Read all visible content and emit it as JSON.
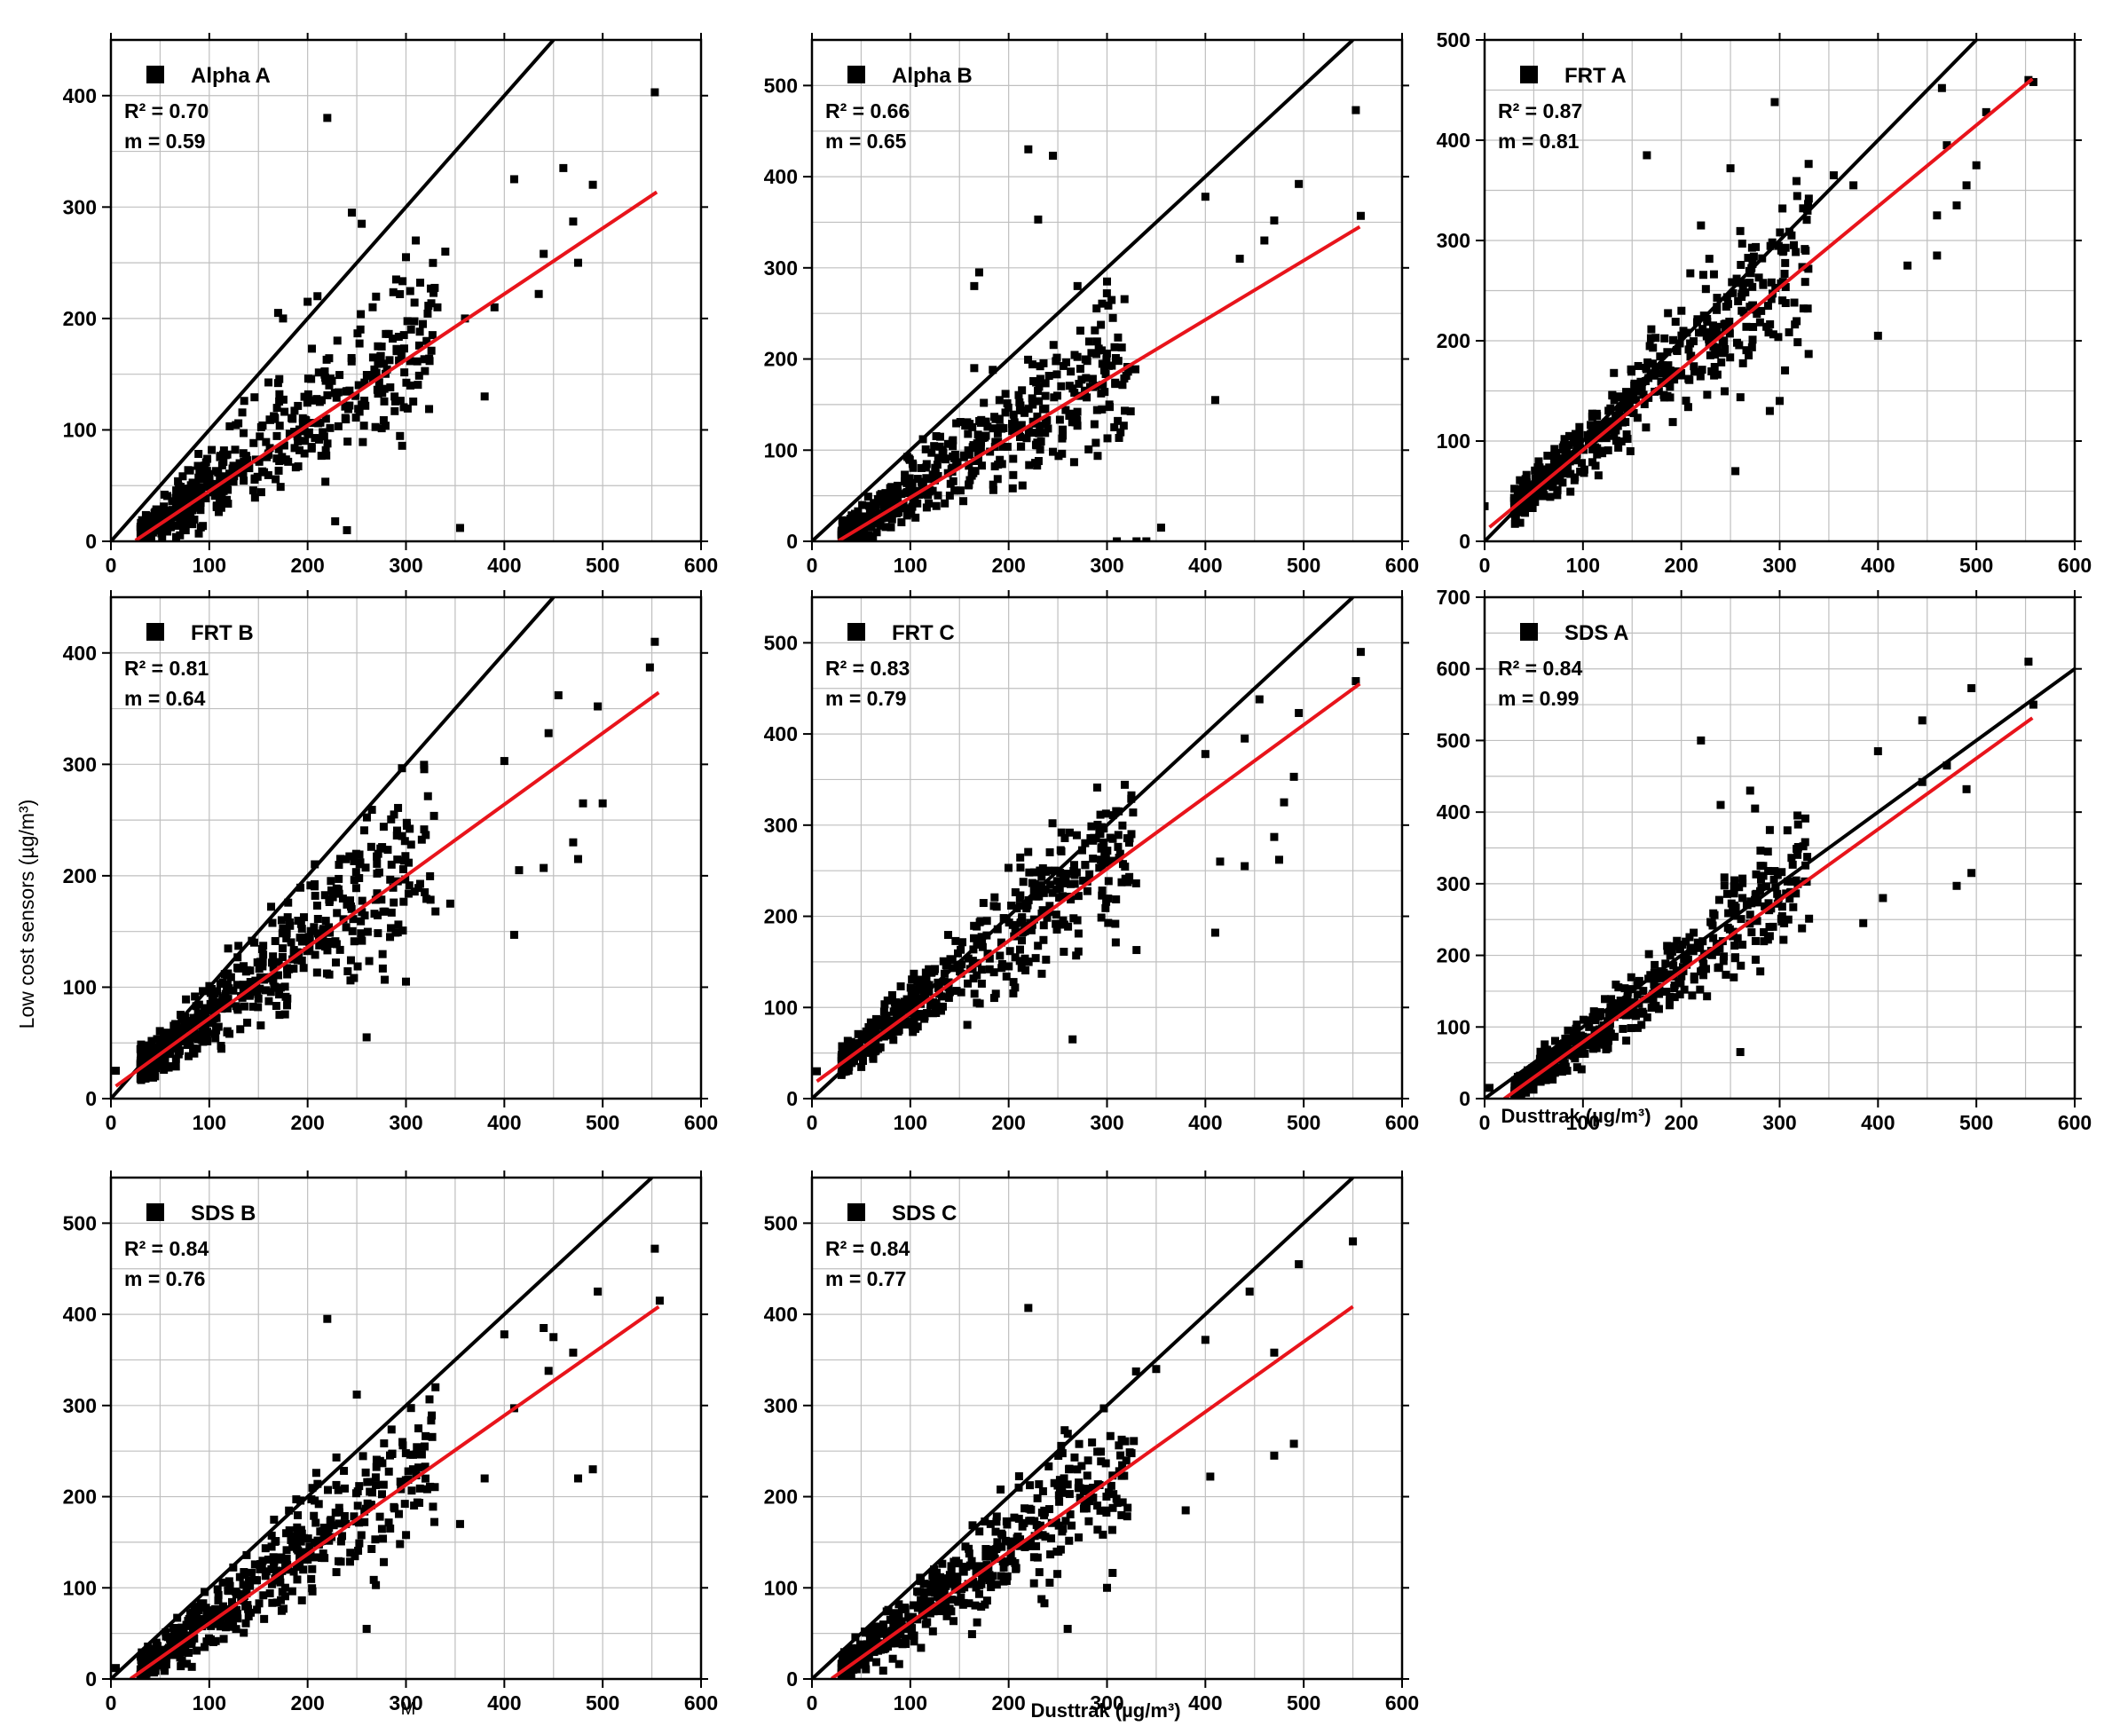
{
  "figure": {
    "y_axis_label": "Low cost sensors (µg/m³)",
    "stray_label": "M",
    "x_axis_label_middle_right": "Dusttrak (µg/m³)",
    "x_axis_label_bottom": "Dusttrak (µg/m³)"
  },
  "colors": {
    "points": "#000000",
    "one_to_one_line": "#000000",
    "fit_line": "#e8141b",
    "grid": "#bfbfbf"
  },
  "chart_data": [
    {
      "type": "scatter",
      "legend": "Alpha A",
      "r2": "R² = 0.70",
      "slope": "m = 0.59",
      "xlim": [
        0,
        600
      ],
      "ylim": [
        0,
        450
      ],
      "xticks": [
        0,
        100,
        200,
        300,
        400,
        500,
        600
      ],
      "yticks": [
        0,
        100,
        200,
        300,
        400
      ],
      "fit": {
        "m": 0.59,
        "b": -14,
        "x0": 25,
        "x1": 555
      },
      "series": [
        {
          "points": [
            [
              220,
              380
            ],
            [
              553,
              403
            ],
            [
              410,
              325
            ],
            [
              460,
              335
            ],
            [
              490,
              320
            ],
            [
              470,
              287
            ],
            [
              440,
              258
            ],
            [
              475,
              250
            ],
            [
              390,
              210
            ],
            [
              435,
              222
            ],
            [
              380,
              130
            ],
            [
              355,
              12
            ],
            [
              240,
              10
            ],
            [
              228,
              18
            ],
            [
              300,
              255
            ],
            [
              310,
              270
            ],
            [
              245,
              295
            ],
            [
              255,
              285
            ],
            [
              290,
              235
            ],
            [
              340,
              260
            ],
            [
              332,
              210
            ],
            [
              360,
              200
            ],
            [
              175,
              200
            ],
            [
              170,
              205
            ],
            [
              200,
              215
            ],
            [
              210,
              220
            ]
          ]
        }
      ]
    },
    {
      "type": "scatter",
      "legend": "Alpha B",
      "r2": "R² = 0.66",
      "slope": "m = 0.65",
      "xlim": [
        0,
        600
      ],
      "ylim": [
        0,
        550
      ],
      "xticks": [
        0,
        100,
        200,
        300,
        400,
        500,
        600
      ],
      "yticks": [
        0,
        100,
        200,
        300,
        400,
        500
      ],
      "fit": {
        "m": 0.65,
        "b": -17,
        "x0": 27,
        "x1": 557
      },
      "series": [
        {
          "points": [
            [
              553,
              473
            ],
            [
              558,
              357
            ],
            [
              220,
              430
            ],
            [
              245,
              423
            ],
            [
              230,
              353
            ],
            [
              400,
              378
            ],
            [
              495,
              392
            ],
            [
              470,
              352
            ],
            [
              460,
              330
            ],
            [
              435,
              310
            ],
            [
              410,
              155
            ],
            [
              355,
              15
            ],
            [
              310,
              0
            ],
            [
              330,
              0
            ],
            [
              340,
              0
            ],
            [
              170,
              295
            ],
            [
              165,
              280
            ],
            [
              300,
              285
            ],
            [
              270,
              280
            ],
            [
              165,
              190
            ],
            [
              160,
              95
            ]
          ]
        }
      ]
    },
    {
      "type": "scatter",
      "legend": "FRT A",
      "r2": "R² = 0.87",
      "slope": "m = 0.81",
      "xlim": [
        0,
        600
      ],
      "ylim": [
        0,
        500
      ],
      "xticks": [
        0,
        100,
        200,
        300,
        400,
        500,
        600
      ],
      "yticks": [
        0,
        100,
        200,
        300,
        400,
        500
      ],
      "fit": {
        "m": 0.81,
        "b": 10,
        "x0": 5,
        "x1": 557
      },
      "series": [
        {
          "points": [
            [
              553,
              460
            ],
            [
              558,
              458
            ],
            [
              465,
              452
            ],
            [
              510,
              428
            ],
            [
              295,
              438
            ],
            [
              165,
              385
            ],
            [
              250,
              372
            ],
            [
              500,
              375
            ],
            [
              470,
              395
            ],
            [
              480,
              335
            ],
            [
              490,
              355
            ],
            [
              460,
              325
            ],
            [
              430,
              275
            ],
            [
              460,
              285
            ],
            [
              400,
              205
            ],
            [
              300,
              140
            ],
            [
              290,
              130
            ],
            [
              255,
              70
            ],
            [
              220,
              315
            ],
            [
              375,
              355
            ],
            [
              355,
              365
            ],
            [
              0,
              35
            ]
          ]
        }
      ]
    },
    {
      "type": "scatter",
      "legend": "FRT B",
      "r2": "R² = 0.81",
      "slope": "m = 0.64",
      "xlim": [
        0,
        600
      ],
      "ylim": [
        0,
        450
      ],
      "xticks": [
        0,
        100,
        200,
        300,
        400,
        500,
        600
      ],
      "yticks": [
        0,
        100,
        200,
        300,
        400
      ],
      "fit": {
        "m": 0.64,
        "b": 8,
        "x0": 5,
        "x1": 557
      },
      "series": [
        {
          "points": [
            [
              553,
              410
            ],
            [
              548,
              387
            ],
            [
              455,
              362
            ],
            [
              495,
              352
            ],
            [
              445,
              328
            ],
            [
              400,
              303
            ],
            [
              480,
              265
            ],
            [
              500,
              265
            ],
            [
              470,
              230
            ],
            [
              475,
              215
            ],
            [
              440,
              207
            ],
            [
              415,
              205
            ],
            [
              410,
              147
            ],
            [
              345,
              175
            ],
            [
              330,
              168
            ],
            [
              260,
              55
            ],
            [
              300,
              105
            ],
            [
              5,
              25
            ]
          ]
        }
      ]
    },
    {
      "type": "scatter",
      "legend": "FRT C",
      "r2": "R² = 0.83",
      "slope": "m = 0.79",
      "xlim": [
        0,
        600
      ],
      "ylim": [
        0,
        550
      ],
      "xticks": [
        0,
        100,
        200,
        300,
        400,
        500,
        600
      ],
      "yticks": [
        0,
        100,
        200,
        300,
        400,
        500
      ],
      "fit": {
        "m": 0.79,
        "b": 15,
        "x0": 5,
        "x1": 557
      },
      "series": [
        {
          "points": [
            [
              558,
              490
            ],
            [
              553,
              458
            ],
            [
              455,
              438
            ],
            [
              495,
              423
            ],
            [
              440,
              395
            ],
            [
              400,
              378
            ],
            [
              490,
              353
            ],
            [
              480,
              325
            ],
            [
              470,
              287
            ],
            [
              475,
              262
            ],
            [
              440,
              255
            ],
            [
              415,
              260
            ],
            [
              410,
              182
            ],
            [
              330,
              163
            ],
            [
              265,
              65
            ],
            [
              5,
              30
            ]
          ]
        }
      ]
    },
    {
      "type": "scatter",
      "legend": "SDS A",
      "r2": "R² = 0.84",
      "slope": "m = 0.99",
      "xlim": [
        0,
        600
      ],
      "ylim": [
        0,
        700
      ],
      "xticks": [
        0,
        100,
        200,
        300,
        400,
        500,
        600
      ],
      "yticks": [
        0,
        100,
        200,
        300,
        400,
        500,
        600,
        700
      ],
      "fit": {
        "m": 0.99,
        "b": -20,
        "x0": 20,
        "x1": 557
      },
      "series": [
        {
          "points": [
            [
              553,
              610
            ],
            [
              558,
              550
            ],
            [
              495,
              573
            ],
            [
              445,
              528
            ],
            [
              400,
              485
            ],
            [
              445,
              442
            ],
            [
              470,
              465
            ],
            [
              490,
              432
            ],
            [
              480,
              297
            ],
            [
              495,
              315
            ],
            [
              405,
              280
            ],
            [
              385,
              245
            ],
            [
              220,
              500
            ],
            [
              270,
              430
            ],
            [
              290,
              375
            ],
            [
              275,
              405
            ],
            [
              240,
              410
            ],
            [
              260,
              65
            ],
            [
              5,
              15
            ]
          ]
        }
      ]
    },
    {
      "type": "scatter",
      "legend": "SDS B",
      "r2": "R² = 0.84",
      "slope": "m = 0.76",
      "xlim": [
        0,
        600
      ],
      "ylim": [
        0,
        550
      ],
      "xticks": [
        0,
        100,
        200,
        300,
        400,
        500,
        600
      ],
      "yticks": [
        0,
        100,
        200,
        300,
        400,
        500
      ],
      "fit": {
        "m": 0.76,
        "b": -15,
        "x0": 20,
        "x1": 557
      },
      "series": [
        {
          "points": [
            [
              553,
              472
            ],
            [
              558,
              415
            ],
            [
              495,
              425
            ],
            [
              440,
              385
            ],
            [
              450,
              375
            ],
            [
              470,
              358
            ],
            [
              400,
              378
            ],
            [
              445,
              338
            ],
            [
              410,
              297
            ],
            [
              475,
              220
            ],
            [
              490,
              230
            ],
            [
              380,
              220
            ],
            [
              355,
              170
            ],
            [
              220,
              395
            ],
            [
              250,
              312
            ],
            [
              330,
              320
            ],
            [
              260,
              55
            ],
            [
              5,
              12
            ]
          ]
        }
      ]
    },
    {
      "type": "scatter",
      "legend": "SDS C",
      "r2": "R² = 0.84",
      "slope": "m = 0.77",
      "xlim": [
        0,
        600
      ],
      "ylim": [
        0,
        550
      ],
      "xticks": [
        0,
        100,
        200,
        300,
        400,
        500,
        600
      ],
      "yticks": [
        0,
        100,
        200,
        300,
        400,
        500
      ],
      "fit": {
        "m": 0.77,
        "b": -15,
        "x0": 20,
        "x1": 550
      },
      "series": [
        {
          "points": [
            [
              550,
              480
            ],
            [
              495,
              455
            ],
            [
              445,
              425
            ],
            [
              400,
              372
            ],
            [
              470,
              358
            ],
            [
              350,
              340
            ],
            [
              405,
              222
            ],
            [
              490,
              258
            ],
            [
              470,
              245
            ],
            [
              380,
              185
            ],
            [
              220,
              407
            ],
            [
              260,
              55
            ],
            [
              300,
              100
            ]
          ]
        }
      ]
    }
  ]
}
